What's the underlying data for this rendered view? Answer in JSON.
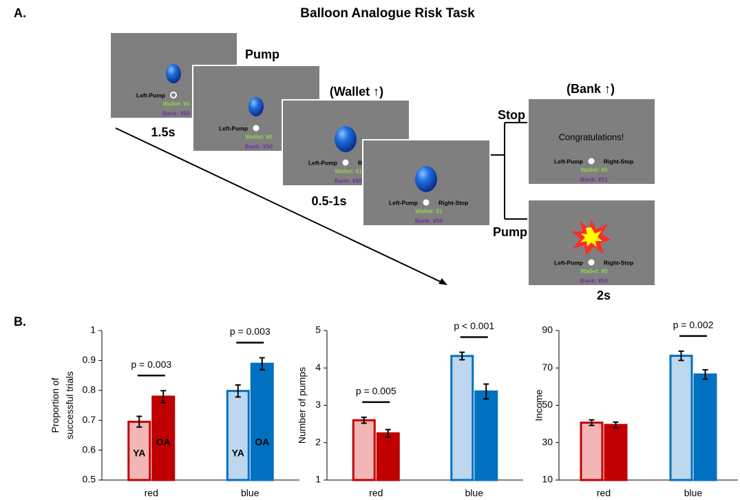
{
  "diagram": {
    "label": "A.",
    "title": "Balloon Analogue Risk Task",
    "screens": [
      {
        "left": "Left-Pump",
        "wallet": "Wallet: ¥0",
        "bank": "Bank: ¥50"
      },
      {
        "left": "Left-Pump",
        "wallet": "Wallet: ¥0",
        "bank": "Bank: ¥50"
      },
      {
        "left": "Left-Pump",
        "right": "R",
        "wallet": "Wallet: ¥1",
        "bank": "Bank: ¥50"
      },
      {
        "left": "Left-Pump",
        "right": "Right-Stop",
        "wallet": "Wallet: ¥1",
        "bank": "Bank: ¥50"
      },
      {
        "message": "Congratulations!",
        "left": "Left-Pump",
        "right": "Right-Stop",
        "wallet": "Wallet: ¥0",
        "bank": "Bank: ¥51"
      },
      {
        "left": "Left-Pump",
        "right": "Right-Stop",
        "wallet": "Wallet: ¥0",
        "bank": "Bank: ¥50"
      }
    ],
    "pump_label": "Pump",
    "time_1": "1.5s",
    "wallet_up": "(Wallet ↑)",
    "time_2": "0.5-1s",
    "bank_up": "(Bank ↑)",
    "stop_branch": "Stop",
    "pump_branch": "Pump",
    "time_3": "2s"
  },
  "panel_b_label": "B.",
  "chart_data": [
    {
      "type": "bar",
      "ylabel": [
        "Proportion of",
        "successful trials"
      ],
      "categories": [
        "red",
        "blue"
      ],
      "ylim": [
        0.5,
        1
      ],
      "yticks": [
        0.5,
        0.6,
        0.7,
        0.8,
        0.9,
        1
      ],
      "series": [
        {
          "name": "YA",
          "colors": [
            "#f2b6b6",
            "#bdd7ee"
          ],
          "edgecolors": [
            "#c00000",
            "#0070c0"
          ],
          "values": [
            0.695,
            0.798
          ],
          "errors": [
            0.018,
            0.02
          ]
        },
        {
          "name": "OA",
          "colors": [
            "#c00000",
            "#0070c0"
          ],
          "edgecolors": [
            "#c00000",
            "#0070c0"
          ],
          "values": [
            0.779,
            0.889
          ],
          "errors": [
            0.02,
            0.02
          ]
        }
      ],
      "annotations": [
        {
          "text": "p = 0.003",
          "category": 0
        },
        {
          "text": "p = 0.003",
          "category": 1
        }
      ]
    },
    {
      "type": "bar",
      "ylabel": [
        "Number of pumps"
      ],
      "categories": [
        "red",
        "blue"
      ],
      "ylim": [
        1,
        5
      ],
      "yticks": [
        1,
        2,
        3,
        4,
        5
      ],
      "series": [
        {
          "colors": [
            "#f2b6b6",
            "#bdd7ee"
          ],
          "edgecolors": [
            "#c00000",
            "#0070c0"
          ],
          "values": [
            2.6,
            4.32
          ],
          "errors": [
            0.08,
            0.1
          ]
        },
        {
          "colors": [
            "#c00000",
            "#0070c0"
          ],
          "edgecolors": [
            "#c00000",
            "#0070c0"
          ],
          "values": [
            2.25,
            3.37
          ],
          "errors": [
            0.1,
            0.2
          ]
        }
      ],
      "annotations": [
        {
          "text": "p = 0.005",
          "category": 0
        },
        {
          "text": "p < 0.001",
          "category": 1
        }
      ]
    },
    {
      "type": "bar",
      "ylabel": [
        "Income"
      ],
      "categories": [
        "red",
        "blue"
      ],
      "ylim": [
        10,
        90
      ],
      "yticks": [
        10,
        30,
        50,
        70,
        90
      ],
      "series": [
        {
          "colors": [
            "#f2b6b6",
            "#bdd7ee"
          ],
          "edgecolors": [
            "#c00000",
            "#0070c0"
          ],
          "values": [
            40.7,
            76.5
          ],
          "errors": [
            1.5,
            2.5
          ]
        },
        {
          "colors": [
            "#c00000",
            "#0070c0"
          ],
          "edgecolors": [
            "#c00000",
            "#0070c0"
          ],
          "values": [
            39.5,
            66.5
          ],
          "errors": [
            1.5,
            2.5
          ]
        }
      ],
      "annotations": [
        {
          "text": "p = 0.002",
          "category": 1
        }
      ]
    }
  ]
}
